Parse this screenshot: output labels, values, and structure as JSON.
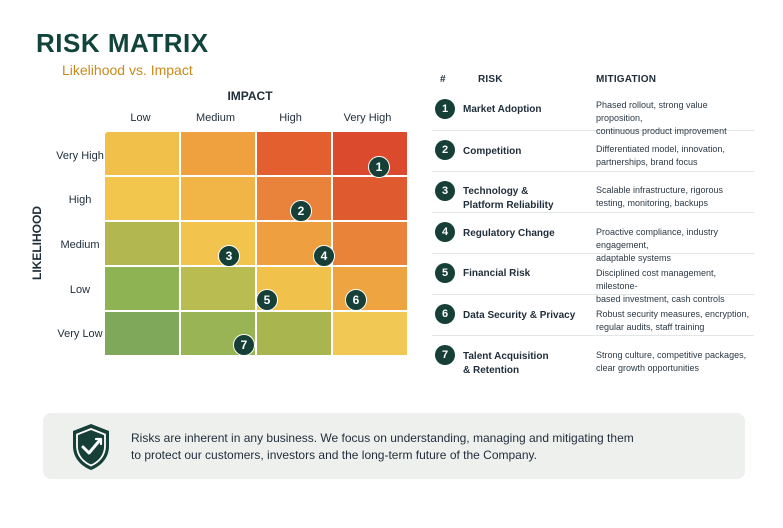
{
  "header": {
    "title": "RISK MATRIX",
    "subtitle": "Likelihood vs. Impact"
  },
  "matrix": {
    "x_axis_label": "IMPACT",
    "y_axis_label": "LIKELIHOOD",
    "columns": [
      "Low",
      "Medium",
      "High",
      "Very High"
    ],
    "rows": [
      "Very High",
      "High",
      "Medium",
      "Low",
      "Very Low"
    ],
    "cell_colors": [
      [
        "#f0c04a",
        "#eea13e",
        "#e35f30",
        "#db4a2c"
      ],
      [
        "#f2c64c",
        "#f0b447",
        "#e9823a",
        "#df5a2e"
      ],
      [
        "#b2b84f",
        "#f2c44d",
        "#eea040",
        "#e9833a"
      ],
      [
        "#8db352",
        "#b9bc50",
        "#f0c24c",
        "#eea441"
      ],
      [
        "#7fa85a",
        "#98b455",
        "#a9b650",
        "#f0c853"
      ]
    ],
    "markers": [
      {
        "label": "1",
        "likelihood": "Very High",
        "impact": "Very High"
      },
      {
        "label": "2",
        "likelihood": "High",
        "impact": "High"
      },
      {
        "label": "3",
        "likelihood": "Medium",
        "impact": "Medium"
      },
      {
        "label": "4",
        "likelihood": "Medium",
        "impact": "High"
      },
      {
        "label": "5",
        "likelihood": "Low",
        "impact": "Medium-High"
      },
      {
        "label": "6",
        "likelihood": "Low",
        "impact": "Very High"
      },
      {
        "label": "7",
        "likelihood": "Very Low",
        "impact": "Medium"
      }
    ]
  },
  "table": {
    "headers": {
      "num": "#",
      "risk": "RISK",
      "mitigation": "MITIGATION"
    },
    "rows": [
      {
        "num": "1",
        "risk": [
          "Market Adoption"
        ],
        "mitigation": [
          "Phased rollout, strong value proposition,",
          "continuous product improvement"
        ]
      },
      {
        "num": "2",
        "risk": [
          "Competition"
        ],
        "mitigation": [
          "Differentiated model, innovation,",
          "partnerships, brand focus"
        ]
      },
      {
        "num": "3",
        "risk": [
          "Technology &",
          "Platform Reliability"
        ],
        "mitigation": [
          "Scalable infrastructure, rigorous",
          "testing, monitoring, backups"
        ]
      },
      {
        "num": "4",
        "risk": [
          "Regulatory Change"
        ],
        "mitigation": [
          "Proactive compliance, industry engagement,",
          "adaptable systems"
        ]
      },
      {
        "num": "5",
        "risk": [
          "Financial Risk"
        ],
        "mitigation": [
          "Disciplined cost management, milestone-",
          "based investment, cash controls"
        ]
      },
      {
        "num": "6",
        "risk": [
          "Data Security & Privacy"
        ],
        "mitigation": [
          "Robust security measures, encryption,",
          "regular audits, staff training"
        ]
      },
      {
        "num": "7",
        "risk": [
          "Talent Acquisition",
          "& Retention"
        ],
        "mitigation": [
          "Strong culture, competitive packages,",
          "clear growth opportunities"
        ]
      }
    ]
  },
  "footer": {
    "icon": "shield-check-icon",
    "lines": [
      "Risks are inherent in any business. We focus on understanding, managing and mitigating them",
      "to protect our customers, investors and the long-term future of the Company."
    ]
  },
  "colors": {
    "brand_dark": "#163f37",
    "accent": "#c98a1a"
  }
}
